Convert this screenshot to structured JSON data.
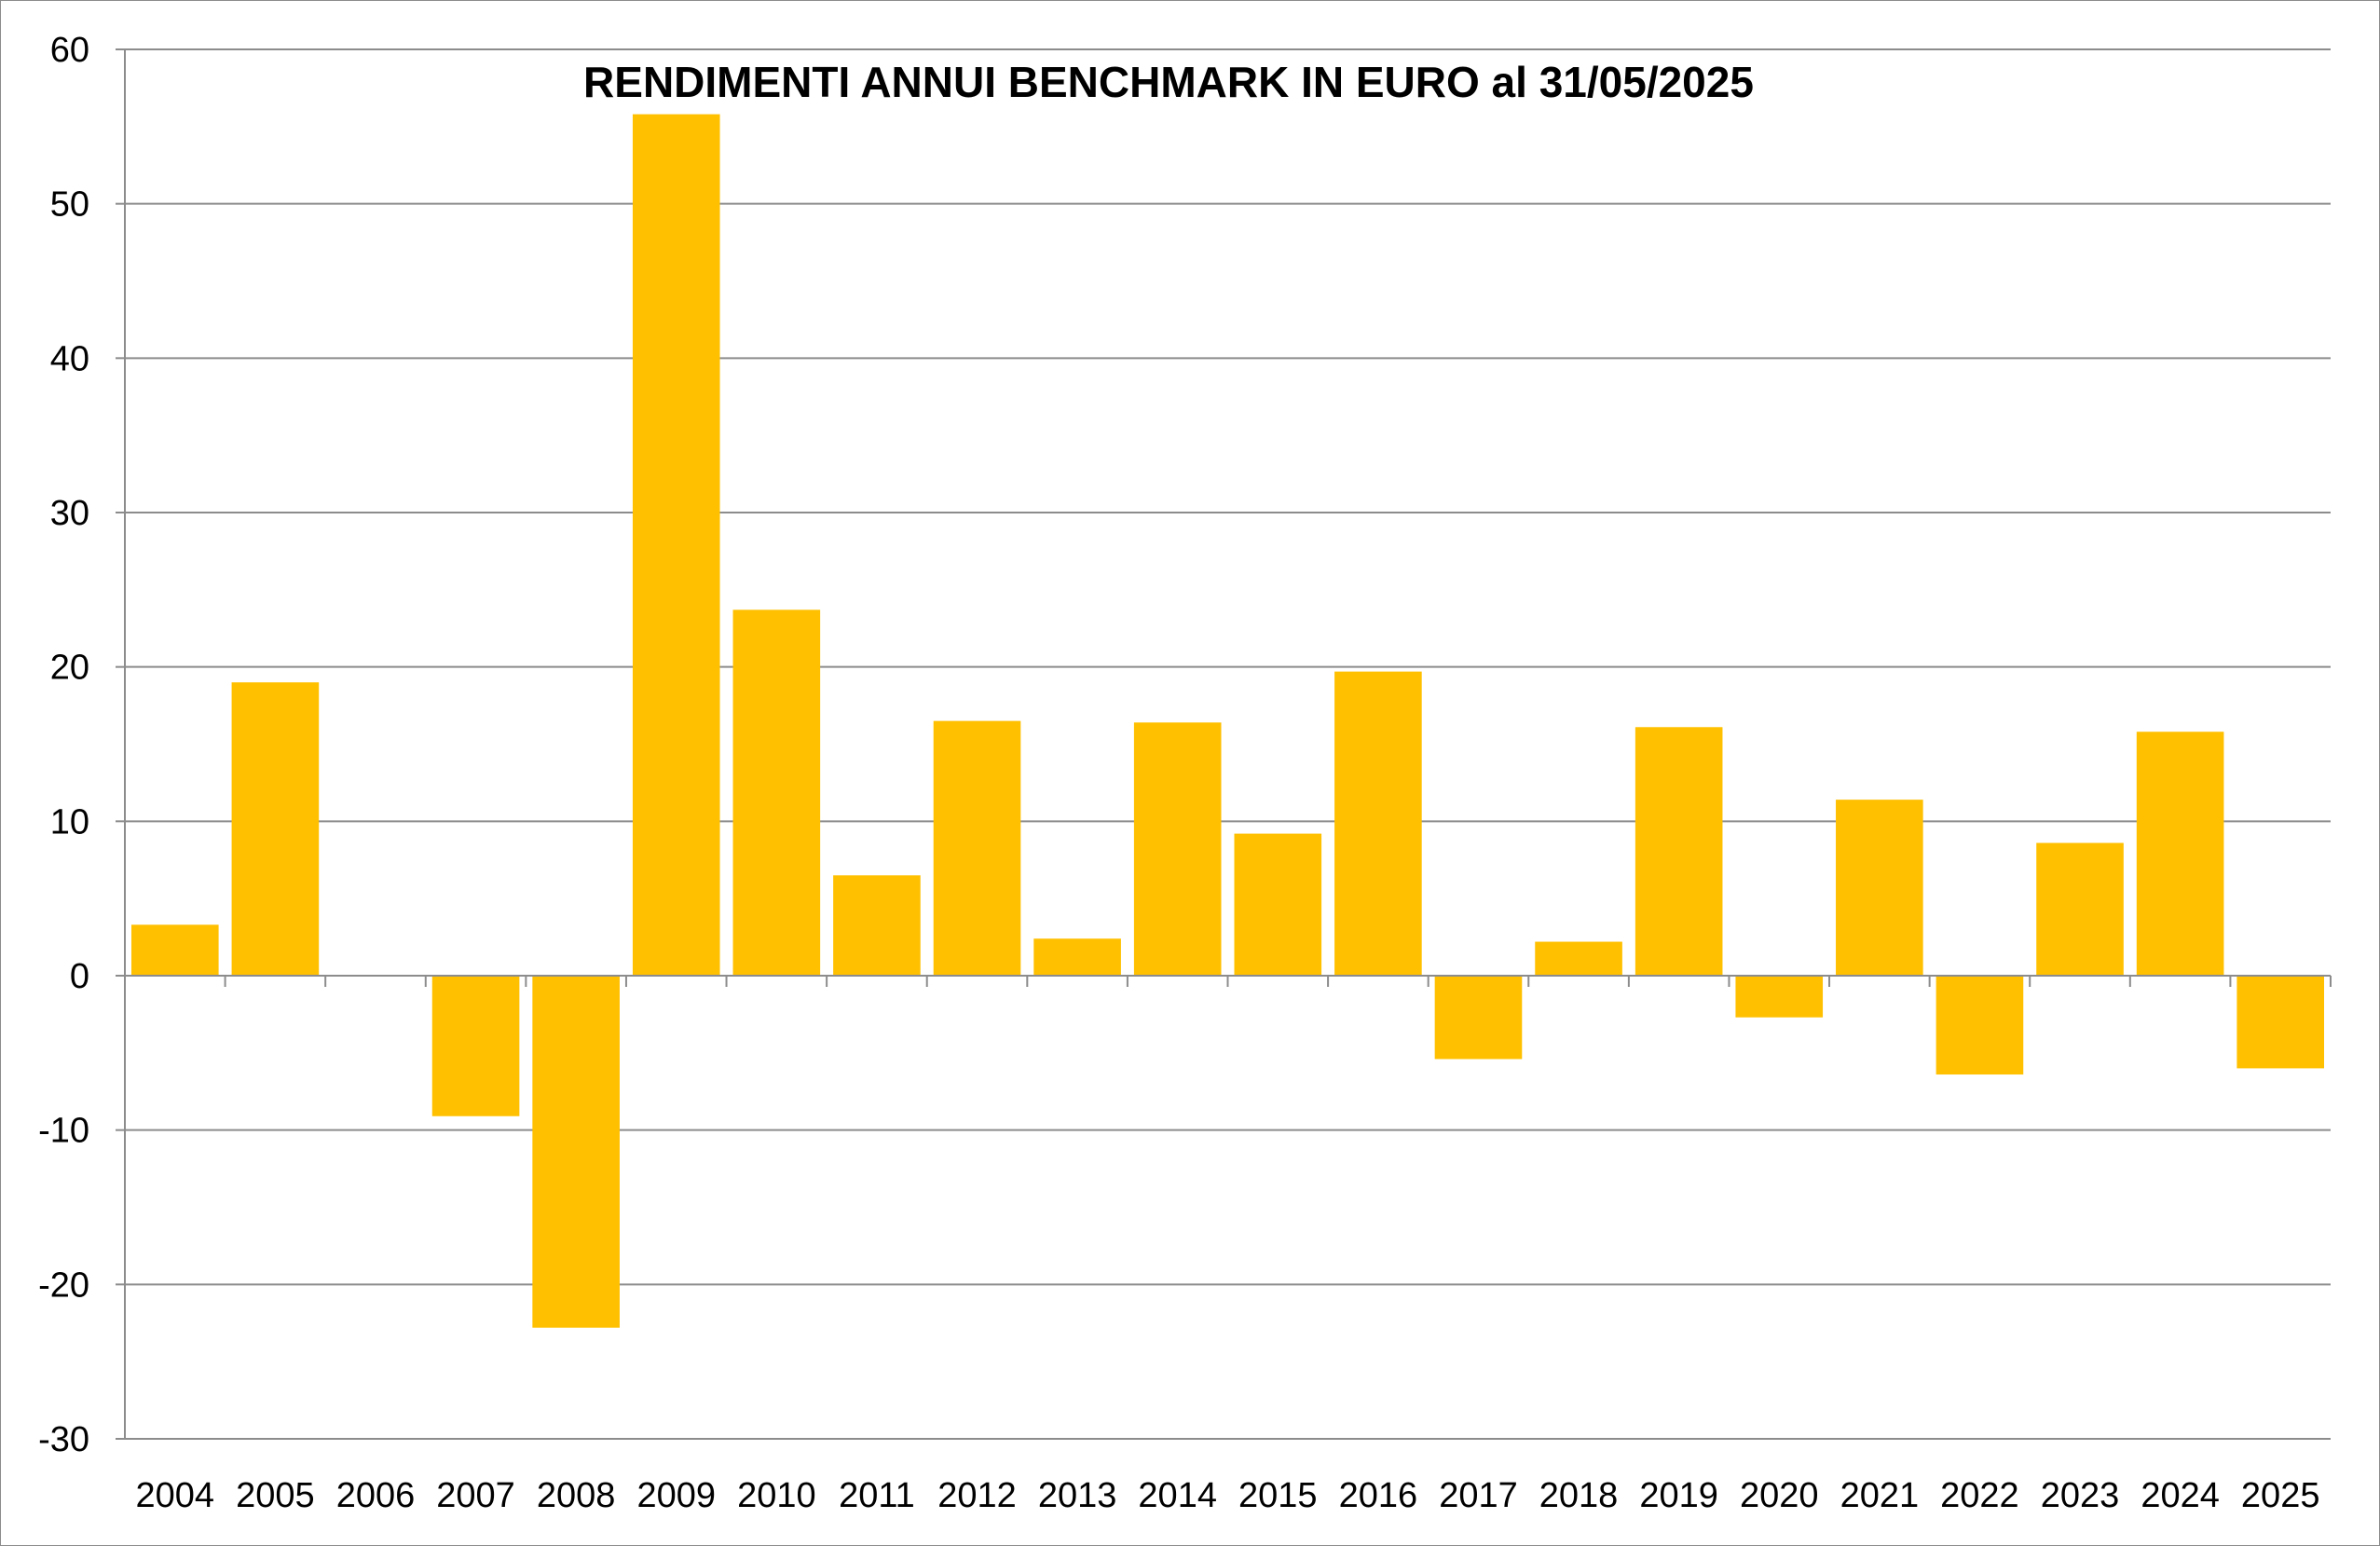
{
  "chart_data": {
    "type": "bar",
    "title": "RENDIMENTI ANNUI BENCHMARK IN EURO al 31/05/2025",
    "xlabel": "",
    "ylabel": "",
    "ylim": [
      -30,
      60
    ],
    "yticks": [
      60,
      50,
      40,
      30,
      20,
      10,
      0,
      -10,
      -20,
      -30
    ],
    "grid": true,
    "legend": "none",
    "bar_color": "#FFC000",
    "categories": [
      "2004",
      "2005",
      "2006",
      "2007",
      "2008",
      "2009",
      "2010",
      "2011",
      "2012",
      "2013",
      "2014",
      "2015",
      "2016",
      "2017",
      "2018",
      "2019",
      "2020",
      "2021",
      "2022",
      "2023",
      "2024",
      "2025"
    ],
    "values": [
      3.3,
      19.0,
      0,
      -9.1,
      -22.8,
      55.8,
      23.7,
      6.5,
      16.5,
      2.4,
      16.4,
      9.2,
      19.7,
      -5.4,
      2.2,
      16.1,
      -2.7,
      11.4,
      -6.4,
      8.6,
      15.8,
      -6.0
    ]
  }
}
